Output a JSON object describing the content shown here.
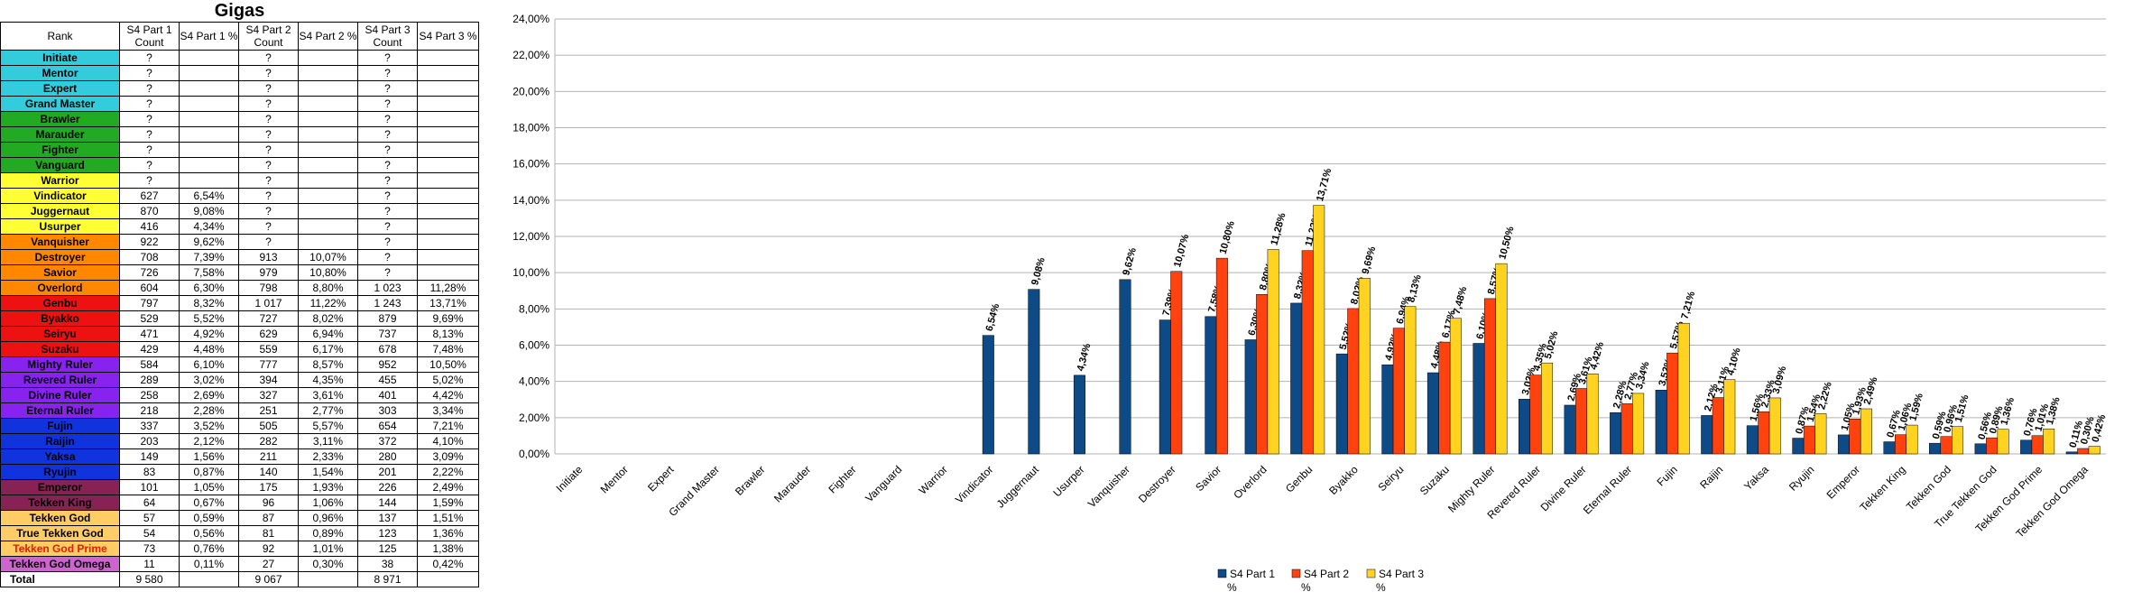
{
  "sheet": {
    "title": "Gigas",
    "headers": [
      "Rank",
      "S4 Part 1 Count",
      "S4 Part 1 %",
      "S4 Part 2 Count",
      "S4 Part 2 %",
      "S4 Part 3 Count",
      "S4 Part 3 %"
    ],
    "rows": [
      {
        "rank": "Initiate",
        "color": "#33ccdd",
        "c1": "?",
        "p1": "",
        "c2": "?",
        "p2": "",
        "c3": "?",
        "p3": ""
      },
      {
        "rank": "Mentor",
        "color": "#33ccdd",
        "c1": "?",
        "p1": "",
        "c2": "?",
        "p2": "",
        "c3": "?",
        "p3": ""
      },
      {
        "rank": "Expert",
        "color": "#33ccdd",
        "c1": "?",
        "p1": "",
        "c2": "?",
        "p2": "",
        "c3": "?",
        "p3": ""
      },
      {
        "rank": "Grand Master",
        "color": "#33ccdd",
        "c1": "?",
        "p1": "",
        "c2": "?",
        "p2": "",
        "c3": "?",
        "p3": ""
      },
      {
        "rank": "Brawler",
        "color": "#22aa22",
        "c1": "?",
        "p1": "",
        "c2": "?",
        "p2": "",
        "c3": "?",
        "p3": ""
      },
      {
        "rank": "Marauder",
        "color": "#22aa22",
        "c1": "?",
        "p1": "",
        "c2": "?",
        "p2": "",
        "c3": "?",
        "p3": ""
      },
      {
        "rank": "Fighter",
        "color": "#22aa22",
        "c1": "?",
        "p1": "",
        "c2": "?",
        "p2": "",
        "c3": "?",
        "p3": ""
      },
      {
        "rank": "Vanguard",
        "color": "#22aa22",
        "c1": "?",
        "p1": "",
        "c2": "?",
        "p2": "",
        "c3": "?",
        "p3": ""
      },
      {
        "rank": "Warrior",
        "color": "#ffff33",
        "c1": "?",
        "p1": "",
        "c2": "?",
        "p2": "",
        "c3": "?",
        "p3": ""
      },
      {
        "rank": "Vindicator",
        "color": "#ffff33",
        "c1": "627",
        "p1": "6,54%",
        "c2": "?",
        "p2": "",
        "c3": "?",
        "p3": ""
      },
      {
        "rank": "Juggernaut",
        "color": "#ffff33",
        "c1": "870",
        "p1": "9,08%",
        "c2": "?",
        "p2": "",
        "c3": "?",
        "p3": ""
      },
      {
        "rank": "Usurper",
        "color": "#ffff33",
        "c1": "416",
        "p1": "4,34%",
        "c2": "?",
        "p2": "",
        "c3": "?",
        "p3": ""
      },
      {
        "rank": "Vanquisher",
        "color": "#ff8800",
        "c1": "922",
        "p1": "9,62%",
        "c2": "?",
        "p2": "",
        "c3": "?",
        "p3": ""
      },
      {
        "rank": "Destroyer",
        "color": "#ff8800",
        "c1": "708",
        "p1": "7,39%",
        "c2": "913",
        "p2": "10,07%",
        "c3": "?",
        "p3": ""
      },
      {
        "rank": "Savior",
        "color": "#ff8800",
        "c1": "726",
        "p1": "7,58%",
        "c2": "979",
        "p2": "10,80%",
        "c3": "?",
        "p3": ""
      },
      {
        "rank": "Overlord",
        "color": "#ff8800",
        "c1": "604",
        "p1": "6,30%",
        "c2": "798",
        "p2": "8,80%",
        "c3": "1 023",
        "p3": "11,28%"
      },
      {
        "rank": "Genbu",
        "color": "#ee1111",
        "c1": "797",
        "p1": "8,32%",
        "c2": "1 017",
        "p2": "11,22%",
        "c3": "1 243",
        "p3": "13,71%"
      },
      {
        "rank": "Byakko",
        "color": "#ee1111",
        "c1": "529",
        "p1": "5,52%",
        "c2": "727",
        "p2": "8,02%",
        "c3": "879",
        "p3": "9,69%"
      },
      {
        "rank": "Seiryu",
        "color": "#ee1111",
        "c1": "471",
        "p1": "4,92%",
        "c2": "629",
        "p2": "6,94%",
        "c3": "737",
        "p3": "8,13%"
      },
      {
        "rank": "Suzaku",
        "color": "#ee1111",
        "c1": "429",
        "p1": "4,48%",
        "c2": "559",
        "p2": "6,17%",
        "c3": "678",
        "p3": "7,48%"
      },
      {
        "rank": "Mighty Ruler",
        "color": "#8822ee",
        "c1": "584",
        "p1": "6,10%",
        "c2": "777",
        "p2": "8,57%",
        "c3": "952",
        "p3": "10,50%"
      },
      {
        "rank": "Revered Ruler",
        "color": "#8822ee",
        "c1": "289",
        "p1": "3,02%",
        "c2": "394",
        "p2": "4,35%",
        "c3": "455",
        "p3": "5,02%"
      },
      {
        "rank": "Divine Ruler",
        "color": "#8822ee",
        "c1": "258",
        "p1": "2,69%",
        "c2": "327",
        "p2": "3,61%",
        "c3": "401",
        "p3": "4,42%"
      },
      {
        "rank": "Eternal Ruler",
        "color": "#8822ee",
        "c1": "218",
        "p1": "2,28%",
        "c2": "251",
        "p2": "2,77%",
        "c3": "303",
        "p3": "3,34%"
      },
      {
        "rank": "Fujin",
        "color": "#1133dd",
        "c1": "337",
        "p1": "3,52%",
        "c2": "505",
        "p2": "5,57%",
        "c3": "654",
        "p3": "7,21%"
      },
      {
        "rank": "Raijin",
        "color": "#1133dd",
        "c1": "203",
        "p1": "2,12%",
        "c2": "282",
        "p2": "3,11%",
        "c3": "372",
        "p3": "4,10%"
      },
      {
        "rank": "Yaksa",
        "color": "#1133dd",
        "c1": "149",
        "p1": "1,56%",
        "c2": "211",
        "p2": "2,33%",
        "c3": "280",
        "p3": "3,09%"
      },
      {
        "rank": "Ryujin",
        "color": "#1133dd",
        "c1": "83",
        "p1": "0,87%",
        "c2": "140",
        "p2": "1,54%",
        "c3": "201",
        "p3": "2,22%"
      },
      {
        "rank": "Emperor",
        "color": "#882255",
        "c1": "101",
        "p1": "1,05%",
        "c2": "175",
        "p2": "1,93%",
        "c3": "226",
        "p3": "2,49%"
      },
      {
        "rank": "Tekken King",
        "color": "#882255",
        "c1": "64",
        "p1": "0,67%",
        "c2": "96",
        "p2": "1,06%",
        "c3": "144",
        "p3": "1,59%"
      },
      {
        "rank": "Tekken God",
        "color": "#ffcc66",
        "c1": "57",
        "p1": "0,59%",
        "c2": "87",
        "p2": "0,96%",
        "c3": "137",
        "p3": "1,51%"
      },
      {
        "rank": "True Tekken God",
        "color": "#ffcc66",
        "c1": "54",
        "p1": "0,56%",
        "c2": "81",
        "p2": "0,89%",
        "c3": "123",
        "p3": "1,36%"
      },
      {
        "rank": "Tekken God Prime",
        "color": "#ffcc66",
        "textColor": "#dd2200",
        "c1": "73",
        "p1": "0,76%",
        "c2": "92",
        "p2": "1,01%",
        "c3": "125",
        "p3": "1,38%"
      },
      {
        "rank": "Tekken God Omega",
        "color": "#cc66cc",
        "c1": "11",
        "p1": "0,11%",
        "c2": "27",
        "p2": "0,30%",
        "c3": "38",
        "p3": "0,42%"
      }
    ],
    "total": {
      "label": "Total",
      "c1": "9 580",
      "c2": "9 067",
      "c3": "8 971"
    }
  },
  "chart_data": {
    "type": "bar",
    "categories": [
      "Initiate",
      "Mentor",
      "Expert",
      "Grand Master",
      "Brawler",
      "Marauder",
      "Fighter",
      "Vanguard",
      "Warrior",
      "Vindicator",
      "Juggernaut",
      "Usurper",
      "Vanquisher",
      "Destroyer",
      "Savior",
      "Overlord",
      "Genbu",
      "Byakko",
      "Seiryu",
      "Suzaku",
      "Mighty Ruler",
      "Revered Ruler",
      "Divine Ruler",
      "Eternal Ruler",
      "Fujin",
      "Raijin",
      "Yaksa",
      "Ryujin",
      "Emperor",
      "Tekken King",
      "Tekken God",
      "True Tekken God",
      "Tekken God Prime",
      "Tekken God Omega"
    ],
    "series": [
      {
        "name": "S4 Part 1 %",
        "color": "#0e4a86",
        "values": [
          null,
          null,
          null,
          null,
          null,
          null,
          null,
          null,
          null,
          6.54,
          9.08,
          4.34,
          9.62,
          7.39,
          7.58,
          6.3,
          8.32,
          5.52,
          4.92,
          4.48,
          6.1,
          3.02,
          2.69,
          2.28,
          3.52,
          2.12,
          1.56,
          0.87,
          1.05,
          0.67,
          0.59,
          0.56,
          0.76,
          0.11
        ]
      },
      {
        "name": "S4 Part 2 %",
        "color": "#ff420e",
        "values": [
          null,
          null,
          null,
          null,
          null,
          null,
          null,
          null,
          null,
          null,
          null,
          null,
          null,
          10.07,
          10.8,
          8.8,
          11.22,
          8.02,
          6.94,
          6.17,
          8.57,
          4.35,
          3.61,
          2.77,
          5.57,
          3.11,
          2.33,
          1.54,
          1.93,
          1.06,
          0.96,
          0.89,
          1.01,
          0.3
        ]
      },
      {
        "name": "S4 Part 3 %",
        "color": "#ffd320",
        "values": [
          null,
          null,
          null,
          null,
          null,
          null,
          null,
          null,
          null,
          null,
          null,
          null,
          null,
          null,
          null,
          11.28,
          13.71,
          9.69,
          8.13,
          7.48,
          10.5,
          5.02,
          4.42,
          3.34,
          7.21,
          4.1,
          3.09,
          2.22,
          2.49,
          1.59,
          1.51,
          1.36,
          1.38,
          0.42
        ]
      }
    ],
    "labels": [
      [
        null,
        null,
        null,
        null,
        null,
        null,
        null,
        null,
        null,
        "6,54%",
        "9,08%",
        "4,34%",
        "9,62%",
        "7,39%",
        "7,58%",
        "6,30%",
        "8,32%",
        "5,52%",
        "4,92%",
        "4,48%",
        "6,10%",
        "3,02%",
        "2,69%",
        "2,28%",
        "3,52%",
        "2,12%",
        "1,56%",
        "0,87%",
        "1,05%",
        "0,67%",
        "0,59%",
        "0,56%",
        "0,76%",
        "0,11%"
      ],
      [
        null,
        null,
        null,
        null,
        null,
        null,
        null,
        null,
        null,
        null,
        null,
        null,
        null,
        "10,07%",
        "10,80%",
        "8,80%",
        "11,22%",
        "8,02%",
        "6,94%",
        "6,17%",
        "8,57%",
        "4,35%",
        "3,61%",
        "2,77%",
        "5,57%",
        "3,11%",
        "2,33%",
        "1,54%",
        "1,93%",
        "1,06%",
        "0,96%",
        "0,89%",
        "1,01%",
        "0,30%"
      ],
      [
        null,
        null,
        null,
        null,
        null,
        null,
        null,
        null,
        null,
        null,
        null,
        null,
        null,
        null,
        null,
        "11,28%",
        "13,71%",
        "9,69%",
        "8,13%",
        "7,48%",
        "10,50%",
        "5,02%",
        "4,42%",
        "3,34%",
        "7,21%",
        "4,10%",
        "3,09%",
        "2,22%",
        "2,49%",
        "1,59%",
        "1,51%",
        "1,36%",
        "1,38%",
        "0,42%"
      ]
    ],
    "yticks": [
      "0,00%",
      "2,00%",
      "4,00%",
      "6,00%",
      "8,00%",
      "10,00%",
      "12,00%",
      "14,00%",
      "16,00%",
      "18,00%",
      "20,00%",
      "22,00%",
      "24,00%"
    ],
    "ylim": [
      0,
      24
    ],
    "grid": true,
    "legend": "bottom",
    "legend_labels": [
      [
        "S4 Part 1",
        "%"
      ],
      [
        "S4 Part 2",
        "%"
      ],
      [
        "S4 Part 3",
        "%"
      ]
    ]
  }
}
